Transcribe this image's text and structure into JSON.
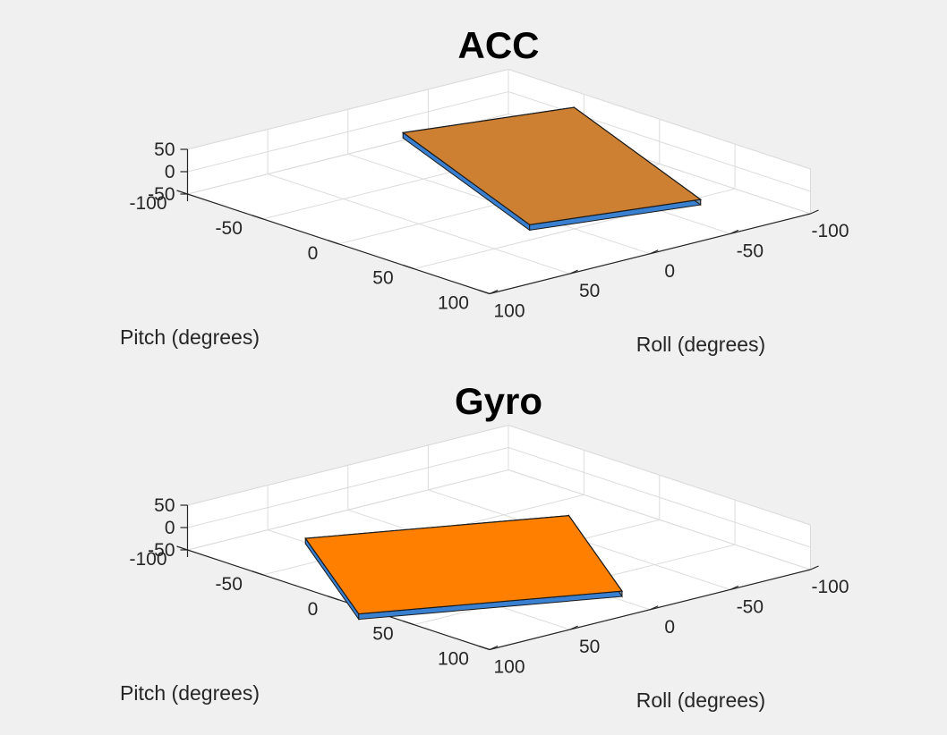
{
  "chart_data": [
    {
      "type": "3d-surface",
      "title": "ACC",
      "xlabel": "Roll (degrees)",
      "ylabel": "Pitch (degrees)",
      "zlabel": "",
      "xlim": [
        -100,
        100
      ],
      "ylim": [
        -100,
        100
      ],
      "zlim": [
        -50,
        50
      ],
      "xticks": [
        -100,
        -50,
        0,
        50,
        100
      ],
      "yticks": [
        -100,
        -50,
        0,
        50,
        100
      ],
      "zticks": [
        -50,
        0,
        50
      ],
      "x_tick_labels": [
        "-100",
        "-50",
        "0",
        "50",
        "100"
      ],
      "y_tick_labels": [
        "-100",
        "-50",
        "0",
        "50",
        "100"
      ],
      "z_tick_labels": [
        "-50",
        "0",
        "50"
      ],
      "grid": true,
      "view": {
        "azimuth": 140,
        "elevation": 20
      },
      "plate": {
        "top_color": "#cd7f32",
        "side_color": "#3a80d0",
        "back_color": "#6f8fa8",
        "corners": [
          {
            "x": 8,
            "y": -55,
            "z": 55
          },
          {
            "x": -92,
            "y": -48,
            "z": 30
          },
          {
            "x": -72,
            "y": 57,
            "z": -41
          },
          {
            "x": 28,
            "y": 50,
            "z": -16
          }
        ]
      }
    },
    {
      "type": "3d-surface",
      "title": "Gyro",
      "xlabel": "Roll (degrees)",
      "ylabel": "Pitch (degrees)",
      "zlabel": "",
      "xlim": [
        -100,
        100
      ],
      "ylim": [
        -100,
        100
      ],
      "zlim": [
        -50,
        50
      ],
      "xticks": [
        -100,
        -50,
        0,
        50,
        100
      ],
      "yticks": [
        -100,
        -50,
        0,
        50,
        100
      ],
      "zticks": [
        -50,
        0,
        50
      ],
      "x_tick_labels": [
        "-100",
        "-50",
        "0",
        "50",
        "100"
      ],
      "y_tick_labels": [
        "-100",
        "-50",
        "0",
        "50",
        "100"
      ],
      "z_tick_labels": [
        "-50",
        "0",
        "50"
      ],
      "grid": true,
      "view": {
        "azimuth": 140,
        "elevation": 20
      },
      "plate": {
        "top_color": "#ff8000",
        "side_color": "#3a80d0",
        "back_color": "#6f8fa8",
        "corners": [
          {
            "x": 50,
            "y": -75,
            "z": -41
          },
          {
            "x": -68,
            "y": -26,
            "z": -41
          },
          {
            "x": -8,
            "y": 73,
            "z": -46
          },
          {
            "x": 110,
            "y": 24,
            "z": -46
          }
        ]
      }
    }
  ]
}
